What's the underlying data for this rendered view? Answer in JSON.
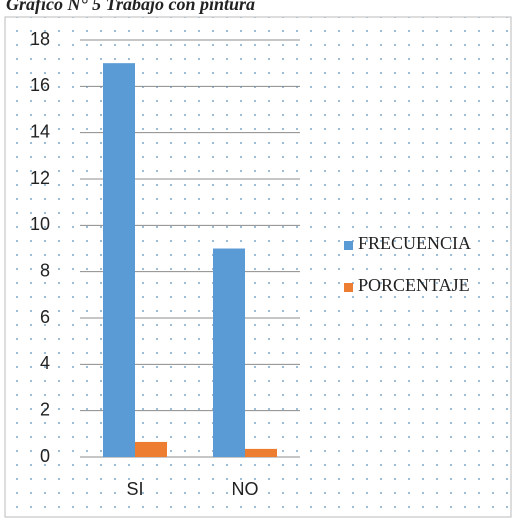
{
  "chart_data": {
    "type": "bar",
    "title": "Gráfico N° 5 Trabajo con pintura",
    "categories": [
      "SI",
      "NO"
    ],
    "series": [
      {
        "name": "FRECUENCIA",
        "color": "#5b9bd5",
        "values": [
          17,
          9
        ]
      },
      {
        "name": "PORCENTAJE",
        "color": "#ed7d31",
        "values": [
          0.65,
          0.35
        ]
      }
    ],
    "ylim": [
      0,
      18
    ],
    "yticks": [
      0,
      2,
      4,
      6,
      8,
      10,
      12,
      14,
      16,
      18
    ],
    "grid": true,
    "legend": "right"
  }
}
